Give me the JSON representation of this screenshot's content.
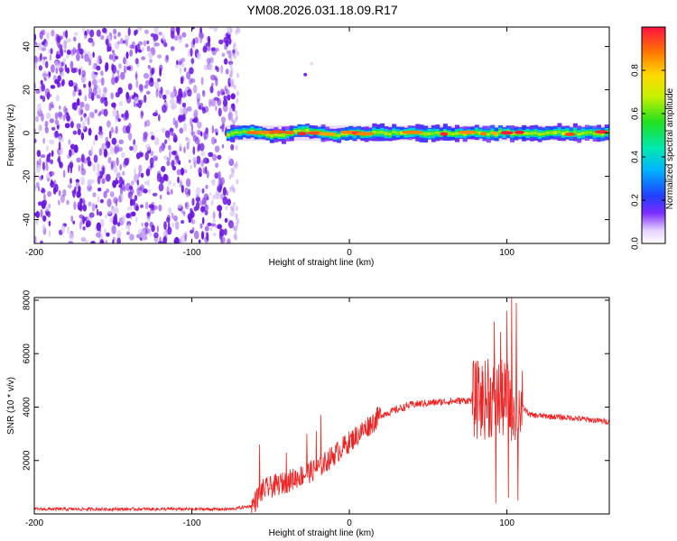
{
  "title": "YM08.2026.031.18.09.R17",
  "chart_data": [
    {
      "type": "heatmap",
      "id": "spectrogram",
      "xlabel": "Height of straight line (km)",
      "ylabel": "Frequency (Hz)",
      "xlim": [
        -200,
        165
      ],
      "ylim": [
        -51,
        49
      ],
      "xticks": [
        -200,
        -100,
        0,
        100
      ],
      "xtick_labels": [
        "-200",
        "-100",
        "0",
        "100"
      ],
      "yticks": [
        -40,
        -20,
        0,
        20,
        40
      ],
      "ytick_labels": [
        "-40",
        "-20",
        "0",
        "20",
        "40"
      ],
      "noise_region": {
        "x_from": -200,
        "x_to": -73,
        "y_from": -51,
        "y_to": 49
      },
      "signal_band": {
        "x_from": -78,
        "x_to": 165,
        "center_hz": 0,
        "halfwidth_hz": 2.5
      },
      "scattered_points": [
        {
          "x": -28,
          "y": 27,
          "amp": 0.15
        },
        {
          "x": -24,
          "y": 32,
          "amp": 0.05
        }
      ],
      "colorbar": {
        "label": "Normalized spectral amplitude",
        "range": [
          0,
          1
        ],
        "ticks": [
          0.0,
          0.2,
          0.4,
          0.6,
          0.8
        ],
        "tick_labels": [
          "0.0",
          "0.2",
          "0.4",
          "0.6",
          "0.8"
        ]
      }
    },
    {
      "type": "line",
      "id": "snr",
      "xlabel": "Height of straight line (km)",
      "ylabel": "SNR (10 * v/v)",
      "xlim": [
        -200,
        165
      ],
      "ylim": [
        0,
        8100
      ],
      "xticks": [
        -200,
        -100,
        0,
        100
      ],
      "xtick_labels": [
        "-200",
        "-100",
        "0",
        "100"
      ],
      "yticks": [
        2000,
        4000,
        6000,
        8000
      ],
      "ytick_labels": [
        "2000",
        "4000",
        "6000",
        "8000"
      ],
      "series": [
        {
          "name": "SNR",
          "color": "#ee2222",
          "envelope": [
            {
              "x": -200,
              "y": 180
            },
            {
              "x": -75,
              "y": 180
            },
            {
              "x": -62,
              "y": 300
            },
            {
              "x": -55,
              "y": 900
            },
            {
              "x": -40,
              "y": 1200
            },
            {
              "x": -20,
              "y": 1700
            },
            {
              "x": 0,
              "y": 2700
            },
            {
              "x": 20,
              "y": 3700
            },
            {
              "x": 40,
              "y": 4100
            },
            {
              "x": 60,
              "y": 4200
            },
            {
              "x": 75,
              "y": 4250
            },
            {
              "x": 95,
              "y": 4300
            },
            {
              "x": 108,
              "y": 4100
            },
            {
              "x": 115,
              "y": 3700
            },
            {
              "x": 140,
              "y": 3600
            },
            {
              "x": 165,
              "y": 3450
            }
          ],
          "spikes": [
            {
              "x": -57,
              "y": 2600
            },
            {
              "x": -40,
              "y": 2300
            },
            {
              "x": -27,
              "y": 3000
            },
            {
              "x": -21,
              "y": 3100
            },
            {
              "x": -18,
              "y": 3700
            },
            {
              "x": 82,
              "y": 4900
            },
            {
              "x": 88,
              "y": 5800
            },
            {
              "x": 92,
              "y": 7200
            },
            {
              "x": 96,
              "y": 6800
            },
            {
              "x": 100,
              "y": 7600
            },
            {
              "x": 103,
              "y": 8100
            },
            {
              "x": 106,
              "y": 7900
            }
          ],
          "dips": [
            {
              "x": 93,
              "y": 400
            },
            {
              "x": 101,
              "y": 600
            },
            {
              "x": 107,
              "y": 500
            }
          ]
        }
      ]
    }
  ]
}
